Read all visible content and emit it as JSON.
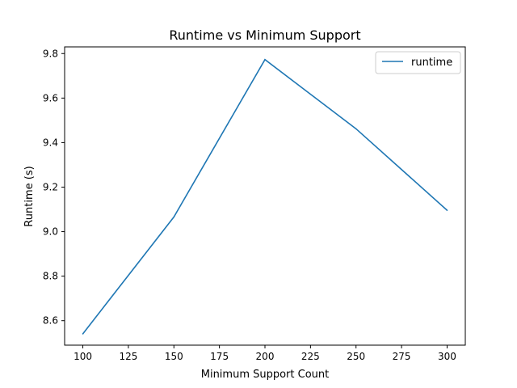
{
  "chart_data": {
    "type": "line",
    "title": "Runtime vs Minimum Support",
    "xlabel": "Minimum Support Count",
    "ylabel": "Runtime (s)",
    "x": [
      100,
      150,
      200,
      250,
      300
    ],
    "series": [
      {
        "name": "runtime",
        "values": [
          8.541,
          9.066,
          9.773,
          9.462,
          9.096
        ],
        "color": "#1f77b4"
      }
    ],
    "xlim": [
      90,
      310
    ],
    "ylim": [
      8.49,
      9.83
    ],
    "xticks": [
      100,
      125,
      150,
      175,
      200,
      225,
      250,
      275,
      300
    ],
    "yticks": [
      8.6,
      8.8,
      9.0,
      9.2,
      9.4,
      9.6,
      9.8
    ],
    "ytick_labels": [
      "8.6",
      "8.8",
      "9.0",
      "9.2",
      "9.4",
      "9.6",
      "9.8"
    ],
    "grid": false,
    "legend": "top-right"
  }
}
